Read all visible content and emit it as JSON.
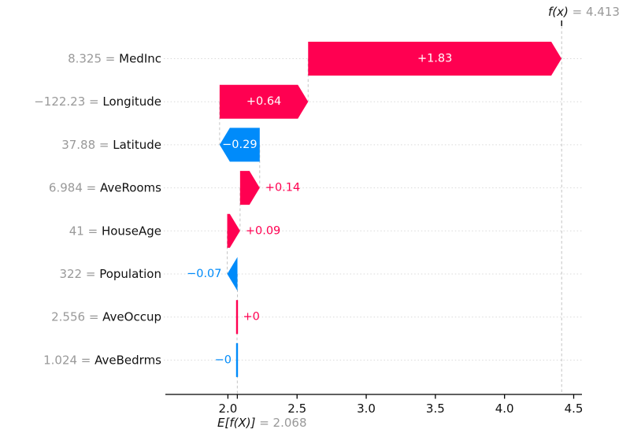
{
  "chart_data": {
    "type": "bar",
    "subtype": "shap-waterfall",
    "fx": {
      "label": "f(x)",
      "value": 4.413,
      "value_text": " = 4.413"
    },
    "base": {
      "label": "E[f(X)]",
      "value": 2.068,
      "value_text": " = 2.068"
    },
    "xticks": [
      2.0,
      2.5,
      3.0,
      3.5,
      4.0,
      4.5
    ],
    "xtick_labels": [
      "2.0",
      "2.5",
      "3.0",
      "3.5",
      "4.0",
      "4.5"
    ],
    "xlim": [
      1.55,
      4.56
    ],
    "grid": "dotted-horizontal-per-row",
    "legend": "none",
    "features": [
      {
        "name": "MedInc",
        "data": "8.325",
        "row_label": "8.325 = ",
        "bar_label": "+1.83",
        "phi": 1.832
      },
      {
        "name": "Longitude",
        "data": "−122.23",
        "row_label": "−122.23 = ",
        "bar_label": "+0.64",
        "phi": 0.64
      },
      {
        "name": "Latitude",
        "data": "37.88",
        "row_label": "37.88 = ",
        "bar_label": "−0.29",
        "phi": -0.29
      },
      {
        "name": "AveRooms",
        "data": "6.984",
        "row_label": "6.984 = ",
        "bar_label": "+0.14",
        "phi": 0.142
      },
      {
        "name": "HouseAge",
        "data": "41",
        "row_label": "41 = ",
        "bar_label": "+0.09",
        "phi": 0.093
      },
      {
        "name": "Population",
        "data": "322",
        "row_label": "322 = ",
        "bar_label": "−0.07",
        "phi": -0.074
      },
      {
        "name": "AveOccup",
        "data": "2.556",
        "row_label": "2.556 = ",
        "bar_label": "+0",
        "phi": 0.003
      },
      {
        "name": "AveBedrms",
        "data": "1.024",
        "row_label": "1.024 = ",
        "bar_label": "−0",
        "phi": -0.002
      }
    ],
    "colors": {
      "positive": "#ff0051",
      "negative": "#008bfa",
      "inside_label": "#ffffff",
      "muted_text": "#999999",
      "main_text": "#111111",
      "gridline": "#d9d9d9",
      "connector": "#c4c4c4",
      "axis": "#000000"
    }
  }
}
